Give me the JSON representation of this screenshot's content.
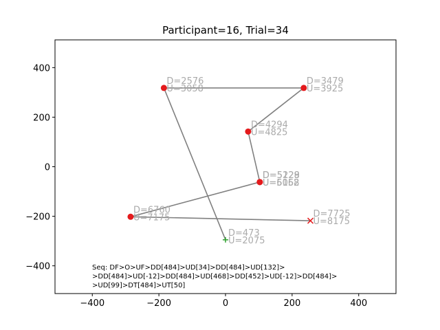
{
  "chart_data": {
    "type": "scatter",
    "title": "Participant=16, Trial=34",
    "xlabel": "",
    "ylabel": "",
    "xlim": [
      -512,
      512
    ],
    "ylim": [
      -512,
      512
    ],
    "xticks": [
      -400,
      -200,
      0,
      200,
      400
    ],
    "yticks": [
      -400,
      -200,
      0,
      200,
      400
    ],
    "xtick_labels": [
      "−400",
      "−200",
      "0",
      "200",
      "400"
    ],
    "ytick_labels": [
      "−400",
      "−200",
      "0",
      "200",
      "400"
    ],
    "grid": false,
    "path": [
      {
        "x": 0,
        "y": -295
      },
      {
        "x": -185,
        "y": 318
      },
      {
        "x": 235,
        "y": 318
      },
      {
        "x": 68,
        "y": 142
      },
      {
        "x": 103,
        "y": -62
      },
      {
        "x": -285,
        "y": -202
      },
      {
        "x": 255,
        "y": -218
      }
    ],
    "points": [
      {
        "x": 0,
        "y": -295,
        "marker": "start",
        "labels": [
          "D=473",
          "U=2075"
        ]
      },
      {
        "x": -185,
        "y": 318,
        "marker": "dot",
        "labels": [
          "D=2576",
          "U=3058"
        ]
      },
      {
        "x": 235,
        "y": 318,
        "marker": "dot",
        "labels": [
          "D=3479",
          "U=3925"
        ]
      },
      {
        "x": 68,
        "y": 142,
        "marker": "dot",
        "labels": [
          "D=4294",
          "U=4825"
        ]
      },
      {
        "x": 103,
        "y": -62,
        "marker": "dot",
        "labels": [
          "D=5129",
          "U=5152"
        ]
      },
      {
        "x": 103,
        "y": -62,
        "marker": "dot",
        "labels": [
          "D=5228",
          "U=6068"
        ]
      },
      {
        "x": -285,
        "y": -202,
        "marker": "dot",
        "labels": [
          "D=6760",
          "U=7175"
        ]
      },
      {
        "x": 255,
        "y": -218,
        "marker": "end",
        "labels": [
          "D=7725",
          "U=8175"
        ]
      }
    ],
    "annotation": [
      "Seq: DF>O>UF>DD[484]>UD[34]>DD[484]>UD[132]>",
      ">DD[484]>UD[-12]>DD[484]>UD[468]>DD[452]>UD[-12]>DD[484]>",
      ">UD[99]>DT[484]>UT[50]"
    ],
    "colors": {
      "line": "#808080",
      "dot": "#e41a1c",
      "start": "#2ca02c",
      "end": "#e41a1c",
      "label": "#aaaaaa"
    }
  }
}
